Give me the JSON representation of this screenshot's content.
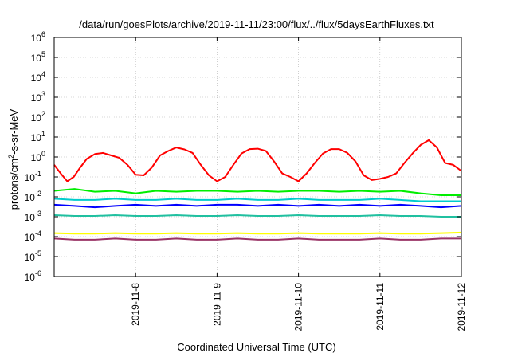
{
  "chart_data": {
    "type": "line",
    "title": "/data/run/goesPlots/archive/2019-11-11/23:00/flux/../flux/5daysEarthFluxes.txt",
    "xlabel": "Coordinated Universal Time (UTC)",
    "ylabel": {
      "base": "protons/cm",
      "sup": "2",
      "rest": "-s-sr-MeV"
    },
    "yscale": "log",
    "ylim": [
      1e-06,
      1000000.0
    ],
    "xlim": [
      "2019-11-07 00:00",
      "2019-11-12 00:00"
    ],
    "y_ticks": [
      {
        "value": 1e-06,
        "base": "10",
        "exp": "-6"
      },
      {
        "value": 1e-05,
        "base": "10",
        "exp": "-5"
      },
      {
        "value": 0.0001,
        "base": "10",
        "exp": "-4"
      },
      {
        "value": 0.001,
        "base": "10",
        "exp": "-3"
      },
      {
        "value": 0.01,
        "base": "10",
        "exp": "-2"
      },
      {
        "value": 0.1,
        "base": "10",
        "exp": "-1"
      },
      {
        "value": 1.0,
        "base": "10",
        "exp": "0"
      },
      {
        "value": 10.0,
        "base": "10",
        "exp": "1"
      },
      {
        "value": 100.0,
        "base": "10",
        "exp": "2"
      },
      {
        "value": 1000.0,
        "base": "10",
        "exp": "3"
      },
      {
        "value": 10000.0,
        "base": "10",
        "exp": "4"
      },
      {
        "value": 100000.0,
        "base": "10",
        "exp": "5"
      },
      {
        "value": 1000000.0,
        "base": "10",
        "exp": "6"
      }
    ],
    "x_ticks": [
      "2019-11-8",
      "2019-11-9",
      "2019-11-10",
      "2019-11-11",
      "2019-11-12"
    ],
    "grid": true,
    "legend": "none",
    "series": [
      {
        "color": "#ff0000",
        "x_days": [
          0,
          0.08,
          0.16,
          0.24,
          0.32,
          0.4,
          0.5,
          0.6,
          0.7,
          0.8,
          0.9,
          1.0,
          1.1,
          1.2,
          1.3,
          1.4,
          1.5,
          1.6,
          1.7,
          1.8,
          1.9,
          2.0,
          2.1,
          2.2,
          2.3,
          2.4,
          2.5,
          2.6,
          2.7,
          2.8,
          2.9,
          3.0,
          3.1,
          3.2,
          3.3,
          3.4,
          3.5,
          3.6,
          3.7,
          3.8,
          3.9,
          4.0,
          4.1,
          4.2,
          4.3,
          4.4,
          4.5,
          4.6,
          4.7,
          4.8,
          4.9,
          5.0
        ],
        "y": [
          0.4,
          0.15,
          0.06,
          0.1,
          0.3,
          0.8,
          1.4,
          1.6,
          1.2,
          0.9,
          0.4,
          0.13,
          0.12,
          0.3,
          1.2,
          2.0,
          3.0,
          2.4,
          1.6,
          0.4,
          0.12,
          0.06,
          0.1,
          0.4,
          1.5,
          2.5,
          2.6,
          2.0,
          0.6,
          0.15,
          0.1,
          0.06,
          0.15,
          0.5,
          1.5,
          2.5,
          2.5,
          1.6,
          0.6,
          0.12,
          0.07,
          0.08,
          0.1,
          0.15,
          0.5,
          1.5,
          4.0,
          7.0,
          3.0,
          0.5,
          0.4,
          0.2
        ]
      },
      {
        "color": "#00ee00",
        "x_days": [
          0,
          0.25,
          0.5,
          0.75,
          1.0,
          1.25,
          1.5,
          1.75,
          2.0,
          2.25,
          2.5,
          2.75,
          3.0,
          3.25,
          3.5,
          3.75,
          4.0,
          4.25,
          4.5,
          4.75,
          5.0
        ],
        "y": [
          0.02,
          0.025,
          0.018,
          0.02,
          0.015,
          0.02,
          0.018,
          0.02,
          0.02,
          0.018,
          0.02,
          0.018,
          0.02,
          0.02,
          0.018,
          0.02,
          0.018,
          0.02,
          0.015,
          0.012,
          0.012
        ]
      },
      {
        "color": "#00cccc",
        "x_days": [
          0,
          0.25,
          0.5,
          0.75,
          1.0,
          1.25,
          1.5,
          1.75,
          2.0,
          2.25,
          2.5,
          2.75,
          3.0,
          3.25,
          3.5,
          3.75,
          4.0,
          4.25,
          4.5,
          4.75,
          5.0
        ],
        "y": [
          0.008,
          0.007,
          0.007,
          0.008,
          0.007,
          0.007,
          0.008,
          0.007,
          0.007,
          0.008,
          0.007,
          0.007,
          0.008,
          0.007,
          0.007,
          0.007,
          0.008,
          0.007,
          0.006,
          0.006,
          0.006
        ]
      },
      {
        "color": "#0000ff",
        "x_days": [
          0,
          0.25,
          0.5,
          0.75,
          1.0,
          1.25,
          1.5,
          1.75,
          2.0,
          2.25,
          2.5,
          2.75,
          3.0,
          3.25,
          3.5,
          3.75,
          4.0,
          4.25,
          4.5,
          4.75,
          5.0
        ],
        "y": [
          0.004,
          0.0035,
          0.003,
          0.0035,
          0.004,
          0.0035,
          0.004,
          0.0035,
          0.004,
          0.004,
          0.0035,
          0.004,
          0.0035,
          0.004,
          0.0035,
          0.004,
          0.0035,
          0.004,
          0.0035,
          0.003,
          0.0035
        ]
      },
      {
        "color": "#20c0a0",
        "x_days": [
          0,
          0.25,
          0.5,
          0.75,
          1.0,
          1.25,
          1.5,
          1.75,
          2.0,
          2.25,
          2.5,
          2.75,
          3.0,
          3.25,
          3.5,
          3.75,
          4.0,
          4.25,
          4.5,
          4.75,
          5.0
        ],
        "y": [
          0.0012,
          0.0011,
          0.0011,
          0.0012,
          0.0011,
          0.0011,
          0.0012,
          0.0011,
          0.0011,
          0.0012,
          0.0011,
          0.0011,
          0.0012,
          0.0011,
          0.0011,
          0.0011,
          0.0012,
          0.0011,
          0.0011,
          0.001,
          0.001
        ]
      },
      {
        "color": "#ffff00",
        "x_days": [
          0,
          0.25,
          0.5,
          0.75,
          1.0,
          1.25,
          1.5,
          1.75,
          2.0,
          2.25,
          2.5,
          2.75,
          3.0,
          3.25,
          3.5,
          3.75,
          4.0,
          4.25,
          4.5,
          4.75,
          5.0
        ],
        "y": [
          0.00015,
          0.00014,
          0.00014,
          0.00015,
          0.00014,
          0.00014,
          0.00015,
          0.00014,
          0.00014,
          0.00015,
          0.00014,
          0.00014,
          0.00015,
          0.00014,
          0.00014,
          0.00014,
          0.00015,
          0.00014,
          0.00014,
          0.00015,
          0.00016
        ]
      },
      {
        "color": "#993366",
        "x_days": [
          0,
          0.25,
          0.5,
          0.75,
          1.0,
          1.25,
          1.5,
          1.75,
          2.0,
          2.25,
          2.5,
          2.75,
          3.0,
          3.25,
          3.5,
          3.75,
          4.0,
          4.25,
          4.5,
          4.75,
          5.0
        ],
        "y": [
          8e-05,
          7e-05,
          7e-05,
          8e-05,
          7e-05,
          7e-05,
          8e-05,
          7e-05,
          7e-05,
          8e-05,
          7e-05,
          7e-05,
          8e-05,
          7e-05,
          7e-05,
          7e-05,
          8e-05,
          7e-05,
          7e-05,
          8e-05,
          8e-05
        ]
      }
    ]
  }
}
